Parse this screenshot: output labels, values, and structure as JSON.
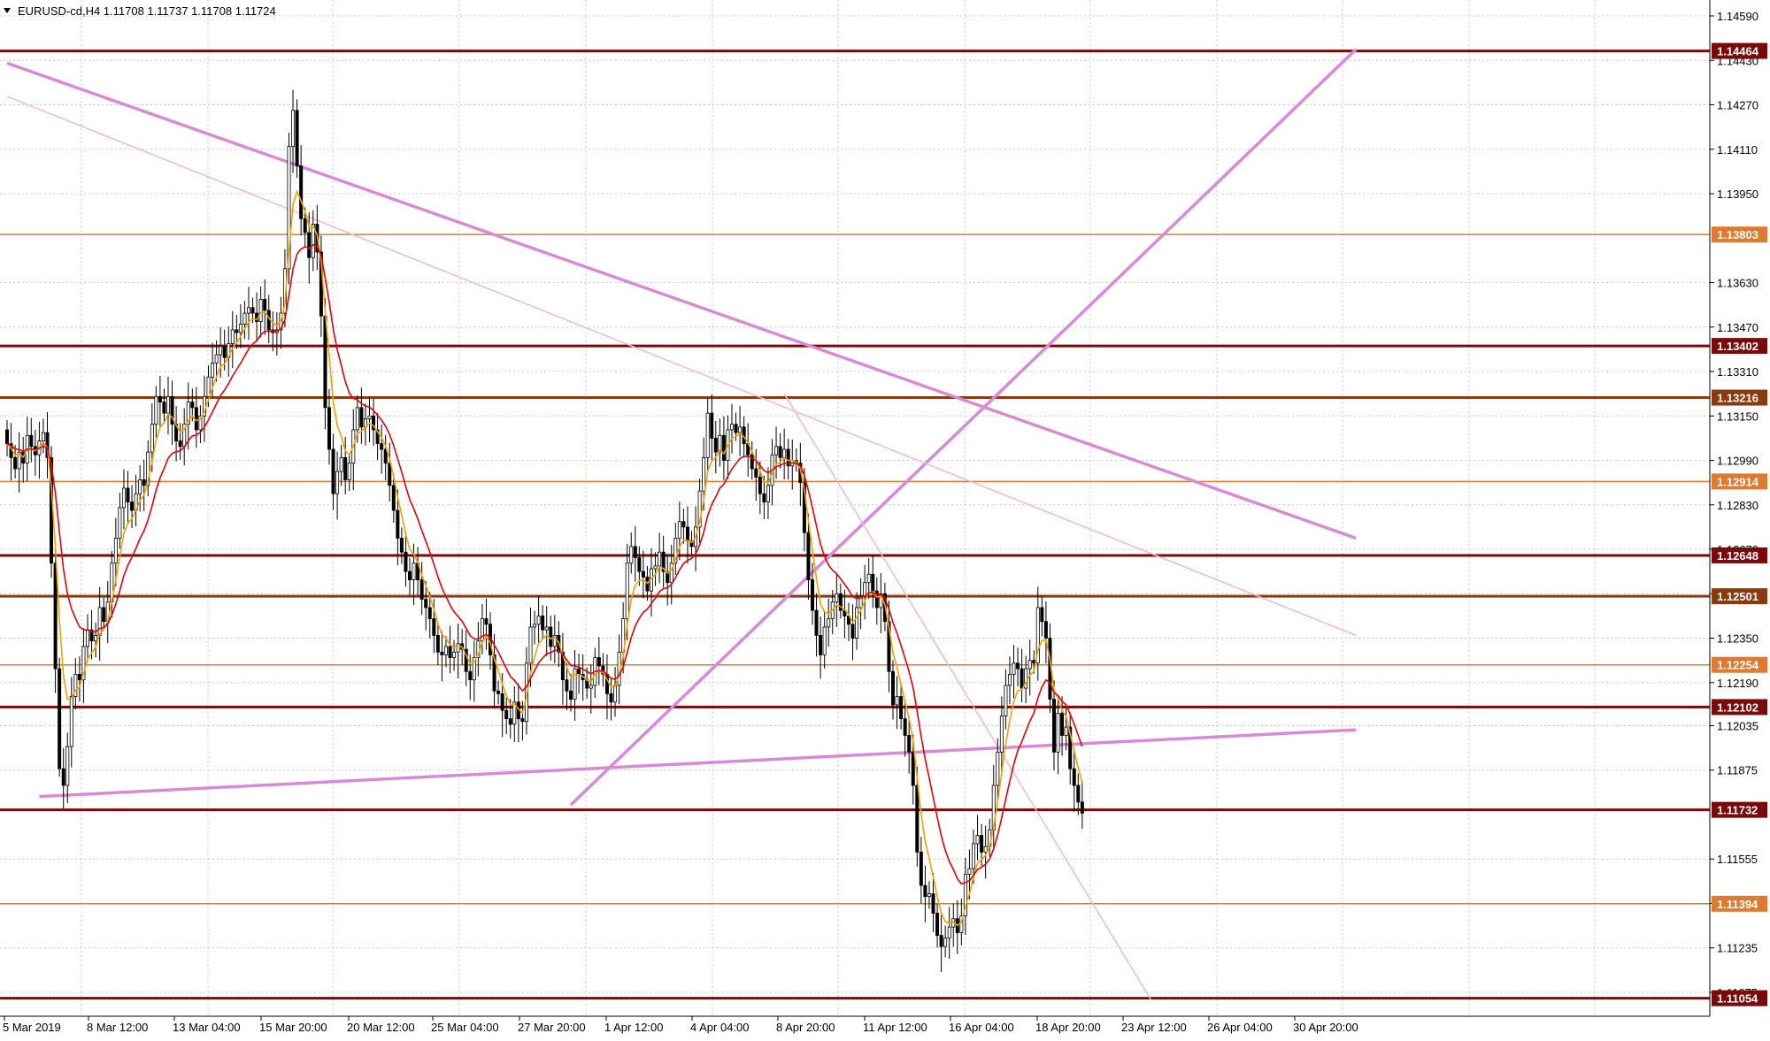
{
  "window": {
    "symbol_info": "EURUSD-cd,H4  1.11708 1.11737 1.11708 1.11724",
    "menu_icon": "triangle-down-icon"
  },
  "colors": {
    "grid": "#c8c8c8",
    "bull_body": "#ffffff",
    "bear_body": "#000000",
    "candle_line": "#000000",
    "ma_fast": "#f5a000",
    "ma_slow": "#e8000a",
    "trendline": "#d88ad8",
    "trendline_light": "#f4b6d0",
    "level_dark": "#7a0a0a",
    "level_brown": "#8b3a0e",
    "level_orange": "#e07a30"
  },
  "chart_data": {
    "type": "candlestick",
    "symbol": "EURUSD-cd",
    "timeframe": "H4",
    "ohlc_header": {
      "open": 1.11708,
      "high": 1.11737,
      "low": 1.11708,
      "close": 1.11724
    },
    "price_axis_ticks": [
      "1.14590",
      "1.14430",
      "1.14270",
      "1.14110",
      "1.13950",
      "1.13630",
      "1.13470",
      "1.13310",
      "1.13150",
      "1.12990",
      "1.12830",
      "1.12670",
      "1.12510",
      "1.12350",
      "1.12190",
      "1.12035",
      "1.11875",
      "1.11555",
      "1.11395",
      "1.11235",
      "1.11075"
    ],
    "time_axis_ticks": [
      "5 Mar 2019",
      "8 Mar 12:00",
      "13 Mar 04:00",
      "15 Mar 20:00",
      "20 Mar 12:00",
      "25 Mar 04:00",
      "27 Mar 20:00",
      "1 Apr 12:00",
      "4 Apr 04:00",
      "8 Apr 20:00",
      "11 Apr 12:00",
      "16 Apr 04:00",
      "18 Apr 20:00",
      "23 Apr 12:00",
      "26 Apr 04:00",
      "30 Apr 20:00"
    ],
    "ylim": [
      1.1102,
      1.1464
    ],
    "levels": [
      {
        "label": "1.14464",
        "value": 1.14464,
        "style": "dark"
      },
      {
        "label": "1.13803",
        "value": 1.13803,
        "style": "orange"
      },
      {
        "label": "1.13402",
        "value": 1.13402,
        "style": "dark"
      },
      {
        "label": "1.13216",
        "value": 1.13216,
        "style": "brown"
      },
      {
        "label": "1.12914",
        "value": 1.12914,
        "style": "orange"
      },
      {
        "label": "1.12648",
        "value": 1.12648,
        "style": "dark"
      },
      {
        "label": "1.12501",
        "value": 1.12501,
        "style": "brown"
      },
      {
        "label": "1.12254",
        "value": 1.12254,
        "style": "orange"
      },
      {
        "label": "1.12102",
        "value": 1.12102,
        "style": "dark"
      },
      {
        "label": "1.11732",
        "value": 1.11732,
        "style": "dark"
      },
      {
        "label": "1.11394",
        "value": 1.11394,
        "style": "orange"
      },
      {
        "label": "1.11054",
        "value": 1.11054,
        "style": "dark"
      }
    ],
    "trendlines": [
      {
        "from": [
          0,
          1.1442
        ],
        "to": [
          335,
          1.1271
        ],
        "style": "main"
      },
      {
        "from": [
          8,
          1.1178
        ],
        "to": [
          335,
          1.1202
        ],
        "style": "main"
      },
      {
        "from": [
          140,
          1.1175
        ],
        "to": [
          335,
          1.1447
        ],
        "style": "main"
      },
      {
        "from": [
          0,
          1.143
        ],
        "to": [
          335,
          1.1236
        ],
        "style": "light"
      },
      {
        "from": [
          193,
          1.1323
        ],
        "to": [
          284,
          1.1105
        ],
        "style": "light"
      }
    ],
    "closes": [
      1.1305,
      1.13,
      1.1296,
      1.1302,
      1.1298,
      1.1308,
      1.1304,
      1.1301,
      1.1306,
      1.1309,
      1.13,
      1.1262,
      1.1224,
      1.1188,
      1.1182,
      1.1196,
      1.1214,
      1.1222,
      1.122,
      1.1232,
      1.1238,
      1.1234,
      1.1236,
      1.1246,
      1.1241,
      1.1248,
      1.1262,
      1.1271,
      1.1282,
      1.1289,
      1.1284,
      1.1281,
      1.1287,
      1.1292,
      1.129,
      1.1302,
      1.1312,
      1.1322,
      1.132,
      1.1316,
      1.1322,
      1.1312,
      1.1306,
      1.1304,
      1.1312,
      1.132,
      1.1318,
      1.131,
      1.1315,
      1.1322,
      1.1329,
      1.1334,
      1.1337,
      1.134,
      1.1336,
      1.1341,
      1.1346,
      1.1345,
      1.1348,
      1.1352,
      1.1354,
      1.1352,
      1.1349,
      1.1357,
      1.1353,
      1.1346,
      1.1345,
      1.1346,
      1.1352,
      1.1368,
      1.1412,
      1.1425,
      1.1405,
      1.1386,
      1.1381,
      1.1372,
      1.1384,
      1.1374,
      1.1351,
      1.1318,
      1.1303,
      1.1287,
      1.1295,
      1.13,
      1.1292,
      1.1298,
      1.131,
      1.1318,
      1.1311,
      1.1314,
      1.1315,
      1.131,
      1.1305,
      1.1303,
      1.1298,
      1.129,
      1.1281,
      1.1271,
      1.1266,
      1.1259,
      1.1256,
      1.1262,
      1.1256,
      1.1249,
      1.1246,
      1.1242,
      1.1236,
      1.123,
      1.1229,
      1.1232,
      1.1228,
      1.123,
      1.1233,
      1.1231,
      1.1223,
      1.122,
      1.1228,
      1.1234,
      1.1242,
      1.124,
      1.1229,
      1.1216,
      1.1215,
      1.1209,
      1.1206,
      1.1204,
      1.1212,
      1.1206,
      1.1205,
      1.1226,
      1.1239,
      1.124,
      1.1243,
      1.1238,
      1.1239,
      1.1232,
      1.1236,
      1.123,
      1.122,
      1.1216,
      1.1213,
      1.1224,
      1.1222,
      1.122,
      1.1217,
      1.1218,
      1.1228,
      1.1225,
      1.1222,
      1.1215,
      1.1212,
      1.1218,
      1.123,
      1.1242,
      1.1262,
      1.1268,
      1.1264,
      1.1259,
      1.1257,
      1.1252,
      1.126,
      1.1261,
      1.1266,
      1.1259,
      1.1255,
      1.1262,
      1.1271,
      1.1277,
      1.1275,
      1.127,
      1.1268,
      1.1275,
      1.1288,
      1.13,
      1.1316,
      1.1307,
      1.1302,
      1.1308,
      1.1299,
      1.131,
      1.1312,
      1.1309,
      1.1311,
      1.1305,
      1.1301,
      1.1296,
      1.1293,
      1.1287,
      1.1284,
      1.129,
      1.1301,
      1.1304,
      1.13,
      1.1303,
      1.1297,
      1.1299,
      1.1298,
      1.1291,
      1.1273,
      1.1256,
      1.1245,
      1.1236,
      1.1229,
      1.1239,
      1.1242,
      1.1248,
      1.1251,
      1.1245,
      1.1243,
      1.124,
      1.1235,
      1.1246,
      1.125,
      1.1255,
      1.1258,
      1.1252,
      1.1246,
      1.1251,
      1.1241,
      1.1223,
      1.1211,
      1.1214,
      1.1206,
      1.12,
      1.1194,
      1.1182,
      1.1158,
      1.1146,
      1.1142,
      1.1143,
      1.1136,
      1.1128,
      1.1124,
      1.1127,
      1.1131,
      1.1134,
      1.1129,
      1.1135,
      1.115,
      1.1152,
      1.1161,
      1.1164,
      1.1158,
      1.116,
      1.1166,
      1.1182,
      1.1194,
      1.1207,
      1.1218,
      1.1222,
      1.1226,
      1.1224,
      1.1217,
      1.1224,
      1.1227,
      1.1226,
      1.1246,
      1.1241,
      1.1235,
      1.1213,
      1.1194,
      1.1208,
      1.12,
      1.1203,
      1.1188,
      1.1182,
      1.1176,
      1.1172
    ]
  }
}
